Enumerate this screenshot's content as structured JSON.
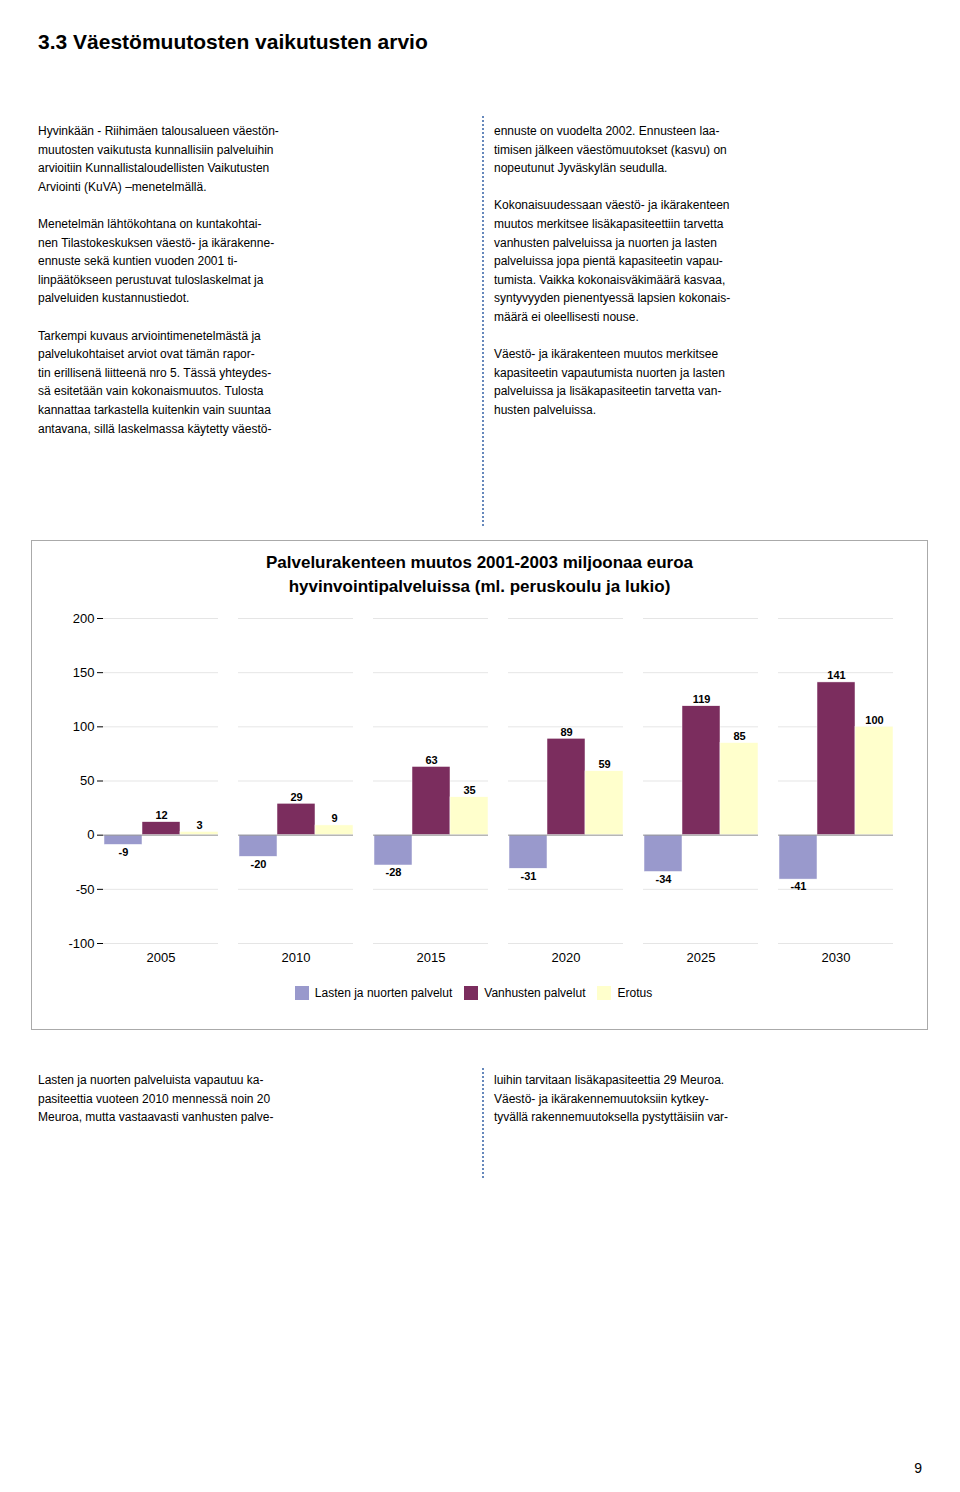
{
  "header": "3.3  Väestömuutosten vaikutusten arvio",
  "text_columns": {
    "top": [
      "Hyvinkään - Riihimäen talousalueen väestön-\nmuutosten vaikutusta kunnallisiin palveluihin\narvioitiin Kunnallistaloudellisten Vaikutusten\nArviointi (KuVA) –menetelmällä.\n\nMenetelmän lähtökohtana on kuntakohtai-\nnen Tilastokeskuksen väestö- ja ikärakenne-\nennuste sekä kuntien vuoden 2001 ti-\nlinpäätökseen perustuvat tuloslaskelmat ja\npalveluiden kustannustiedot.\n\nTarkempi kuvaus arviointimenetelmästä ja\npalvelukohtaiset arviot ovat tämän rapor-\ntin erillisenä liitteenä nro 5. Tässä yhteydes-\nsä esitetään vain kokonaismuutos. Tulosta\nkannattaa tarkastella kuitenkin vain suuntaa\nantavana, sillä laskelmassa käytetty väestö-",
      "ennuste on vuodelta 2002. Ennusteen laa-\ntimisen jälkeen väestömuutokset (kasvu) on\nnopeutunut Jyväskylän seudulla.\n\nKokonaisuudessaan väestö- ja ikärakenteen\nmuutos merkitsee lisäkapasiteettiin tarvetta\nvanhusten palveluissa ja nuorten ja lasten\npalveluissa jopa pientä kapasiteetin vapau-\ntumista. Vaikka kokonaisväkimäärä kasvaa,\nsyntyvyyden pienentyessä lapsien kokonais-\nmäärä ei oleellisesti nouse.\n\nVäestö- ja ikärakenteen muutos merkitsee\nkapasiteetin vapautumista nuorten ja lasten\npalveluissa ja lisäkapasiteetin tarvetta van-\nhusten palveluissa."
    ],
    "bottom": [
      "Lasten ja nuorten palveluista vapautuu ka-\npasiteettia vuoteen 2010 mennessä noin 20\nMeuroa, mutta vastaavasti vanhusten palve-",
      "luihin tarvitaan lisäkapasiteettia 29 Meuroa.\nVäestö- ja ikärakennemuutoksiin kytkey-\ntyvällä rakennemuutoksella pystyttäisiin var-"
    ]
  },
  "page_number": "9",
  "chart_data": {
    "type": "bar",
    "title": "Palvelurakenteen muutos 2001-2003 miljoonaa euroa\nhyvinvointipalveluissa (ml. peruskoulu ja lukio)",
    "categories": [
      "2005",
      "2010",
      "2015",
      "2020",
      "2025",
      "2030"
    ],
    "series": [
      {
        "name": "Lasten ja nuorten palvelut",
        "color": "#9999cc",
        "values": [
          -9,
          -20,
          -28,
          -31,
          -34,
          -41
        ]
      },
      {
        "name": "Vanhusten palvelut",
        "color": "#7b2d5e",
        "values": [
          12,
          29,
          63,
          89,
          119,
          141
        ]
      },
      {
        "name": "Erotus",
        "color": "#ffffcc",
        "values": [
          3,
          9,
          35,
          59,
          85,
          100
        ]
      }
    ],
    "ylim": [
      -100,
      200
    ],
    "yticks": [
      -100,
      -50,
      0,
      50,
      100,
      150,
      200
    ],
    "grid": true,
    "legend": "bottom",
    "data_labels": true
  }
}
